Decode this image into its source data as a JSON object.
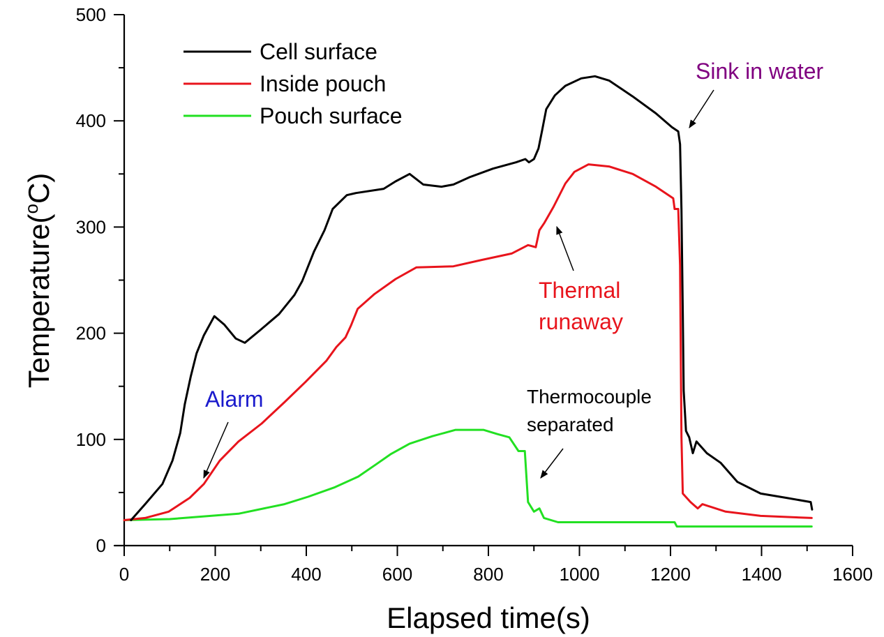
{
  "chart_data": {
    "type": "line",
    "title": "",
    "xlabel": "Elapsed time(s)",
    "ylabel_main": "Temperature(",
    "ylabel_sup": "o",
    "ylabel_tail": "C)",
    "xlim": [
      0,
      1600
    ],
    "ylim": [
      0,
      500
    ],
    "x_ticks": [
      0,
      200,
      400,
      600,
      800,
      1000,
      1200,
      1400,
      1600
    ],
    "x_tick_labels": [
      "0",
      "200",
      "400",
      "600",
      "800",
      "1000",
      "1200",
      "1400",
      "1600"
    ],
    "x_minor_ticks": [
      100,
      300,
      500,
      700,
      900,
      1100,
      1300,
      1500
    ],
    "y_ticks": [
      0,
      100,
      200,
      300,
      400,
      500
    ],
    "y_tick_labels": [
      "0",
      "100",
      "200",
      "300",
      "400",
      "500"
    ],
    "y_minor_ticks": [
      50,
      150,
      250,
      350,
      450
    ],
    "grid": false,
    "legend_position": "top-left",
    "series": [
      {
        "name": "Cell surface",
        "color": "#000000",
        "x": [
          15,
          46,
          84,
          106,
          123,
          133,
          146,
          159,
          175,
          198,
          220,
          245,
          265,
          299,
          340,
          374,
          391,
          417,
          440,
          458,
          489,
          509,
          570,
          596,
          627,
          657,
          697,
          723,
          759,
          810,
          861,
          881,
          889,
          900,
          910,
          918,
          927,
          946,
          969,
          1004,
          1034,
          1065,
          1117,
          1168,
          1203,
          1217,
          1221,
          1224,
          1227,
          1229,
          1234,
          1241,
          1249,
          1257,
          1280,
          1310,
          1347,
          1398,
          1454,
          1508,
          1511
        ],
        "y": [
          24,
          39,
          58,
          80,
          106,
          133,
          159,
          181,
          198,
          216,
          208,
          195,
          191,
          203,
          218,
          236,
          249,
          277,
          297,
          317,
          330,
          332,
          336,
          343,
          350,
          340,
          338,
          340,
          347,
          355,
          361,
          364,
          361,
          364,
          374,
          391,
          411,
          424,
          433,
          440,
          442,
          438,
          423,
          407,
          394,
          390,
          378,
          317,
          220,
          146,
          108,
          102,
          87,
          98,
          87,
          78,
          60,
          49,
          45,
          41,
          34
        ]
      },
      {
        "name": "Inside pouch",
        "color": "#e8141c",
        "x": [
          0,
          46,
          98,
          144,
          175,
          210,
          251,
          302,
          352,
          398,
          444,
          466,
          486,
          498,
          513,
          550,
          596,
          642,
          723,
          785,
          851,
          887,
          904,
          912,
          923,
          943,
          969,
          989,
          1020,
          1065,
          1117,
          1168,
          1206,
          1209,
          1217,
          1221,
          1224,
          1227,
          1244,
          1260,
          1270,
          1321,
          1398,
          1510
        ],
        "y": [
          24,
          26,
          32,
          45,
          58,
          80,
          98,
          115,
          135,
          154,
          174,
          187,
          196,
          207,
          223,
          237,
          251,
          262,
          263,
          269,
          275,
          283,
          281,
          297,
          304,
          319,
          341,
          352,
          359,
          357,
          350,
          338,
          327,
          317,
          317,
          264,
          102,
          49,
          41,
          35,
          39,
          32,
          28,
          26
        ]
      },
      {
        "name": "Pouch surface",
        "color": "#22e022",
        "x": [
          0,
          100,
          251,
          352,
          404,
          463,
          514,
          555,
          585,
          627,
          677,
          728,
          789,
          820,
          846,
          866,
          880,
          887,
          900,
          912,
          922,
          953,
          1050,
          1168,
          1209,
          1214,
          1350,
          1510
        ],
        "y": [
          24,
          25,
          30,
          39,
          46,
          55,
          65,
          77,
          86,
          96,
          103,
          109,
          109,
          105,
          102,
          89,
          89,
          41,
          32,
          35,
          26,
          22,
          22,
          22,
          22,
          18,
          18,
          18
        ]
      }
    ],
    "annotations": [
      {
        "id": "alarm",
        "lines": [
          "Alarm"
        ],
        "color": "#1a1acc",
        "target": [
          175,
          58
        ]
      },
      {
        "id": "thermocouple",
        "lines": [
          "Thermocouple",
          "separated"
        ],
        "color": "#000000",
        "target": [
          917,
          64
        ]
      },
      {
        "id": "thermal-runaway",
        "lines": [
          "Thermal",
          "runaway"
        ],
        "color": "#e8141c",
        "target": [
          950,
          300
        ]
      },
      {
        "id": "sink",
        "lines": [
          "Sink in water"
        ],
        "color": "#800080",
        "target": [
          1240,
          393
        ]
      }
    ]
  }
}
